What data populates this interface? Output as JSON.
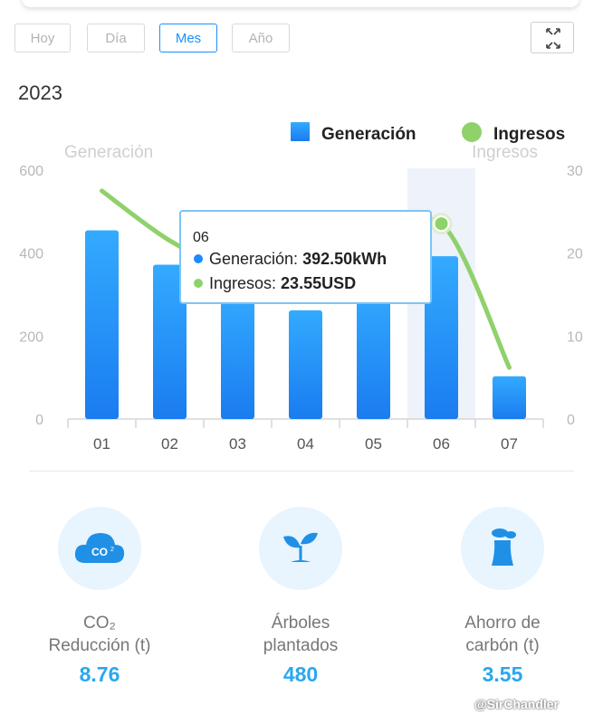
{
  "tabs": [
    {
      "label": "Hoy",
      "active": false
    },
    {
      "label": "Día",
      "active": false
    },
    {
      "label": "Mes",
      "active": true
    },
    {
      "label": "Año",
      "active": false
    }
  ],
  "year": "2023",
  "chart_data": {
    "type": "bar",
    "categories": [
      "01",
      "02",
      "03",
      "04",
      "05",
      "06",
      "07"
    ],
    "series": [
      {
        "name": "Generación",
        "type": "bar",
        "color": "#1a8cff",
        "axis": "left",
        "values": [
          455,
          372,
          308,
          262,
          318,
          392.5,
          103
        ]
      },
      {
        "name": "Ingresos",
        "type": "line",
        "color": "#8fd16a",
        "axis": "right",
        "values": [
          27.5,
          21.5,
          17.5,
          15.5,
          19.5,
          23.55,
          6.2
        ]
      }
    ],
    "left_axis": {
      "title": "Generación",
      "ticks": [
        0,
        200,
        400,
        600
      ],
      "ylim": [
        0,
        600
      ]
    },
    "right_axis": {
      "title": "Ingresos",
      "ticks": [
        0,
        10,
        20,
        30
      ],
      "ylim": [
        0,
        30
      ]
    },
    "legend": [
      "Generación",
      "Ingresos"
    ],
    "legend_position": "top-right",
    "highlight_index": 5,
    "tooltip": {
      "title": "06",
      "rows": [
        {
          "label": "Generación: ",
          "value": "392.50kWh",
          "color": "#1a8cff"
        },
        {
          "label": "Ingresos: ",
          "value": "23.55USD",
          "color": "#8fd16a"
        }
      ]
    }
  },
  "stats": [
    {
      "label": "CO₂\nReducción (t)",
      "value": "8.76",
      "icon": "co2-cloud-icon"
    },
    {
      "label": "Árboles\nplantados",
      "value": "480",
      "icon": "sprout-icon"
    },
    {
      "label": "Ahorro de\ncarbón (t)",
      "value": "3.55",
      "icon": "factory-icon"
    }
  ],
  "watermark": "@SirChandler"
}
